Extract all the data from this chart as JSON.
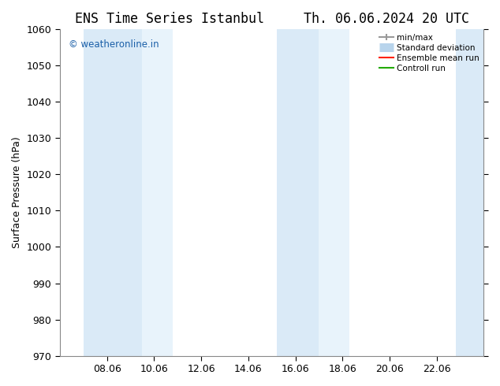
{
  "title_left": "ENS Time Series Istanbul",
  "title_right": "Th. 06.06.2024 20 UTC",
  "ylabel": "Surface Pressure (hPa)",
  "ylim": [
    970,
    1060
  ],
  "yticks": [
    970,
    980,
    990,
    1000,
    1010,
    1020,
    1030,
    1040,
    1050,
    1060
  ],
  "xtick_labels": [
    "08.06",
    "10.06",
    "12.06",
    "14.06",
    "16.06",
    "18.06",
    "20.06",
    "22.06"
  ],
  "xtick_positions": [
    2,
    4,
    6,
    8,
    10,
    12,
    14,
    16
  ],
  "xmin": 0.0,
  "xmax": 18.0,
  "shaded_bands": [
    {
      "x_start": 1.0,
      "x_end": 3.5,
      "color": "#daeaf7"
    },
    {
      "x_start": 3.5,
      "x_end": 4.8,
      "color": "#e8f3fb"
    },
    {
      "x_start": 9.2,
      "x_end": 11.0,
      "color": "#daeaf7"
    },
    {
      "x_start": 11.0,
      "x_end": 12.3,
      "color": "#e8f3fb"
    },
    {
      "x_start": 16.8,
      "x_end": 18.0,
      "color": "#daeaf7"
    }
  ],
  "watermark_text": "© weatheronline.in",
  "watermark_color": "#1a5fa8",
  "legend_entries": [
    {
      "label": "min/max",
      "color": "#999999",
      "type": "minmax"
    },
    {
      "label": "Standard deviation",
      "color": "#b8d4ec",
      "type": "band"
    },
    {
      "label": "Ensemble mean run",
      "color": "#ff2200",
      "type": "line"
    },
    {
      "label": "Controll run",
      "color": "#22aa00",
      "type": "line"
    }
  ],
  "bg_color": "#ffffff",
  "plot_bg_color": "#ffffff",
  "spine_color": "#888888",
  "title_fontsize": 12,
  "axis_label_fontsize": 9,
  "tick_fontsize": 9
}
